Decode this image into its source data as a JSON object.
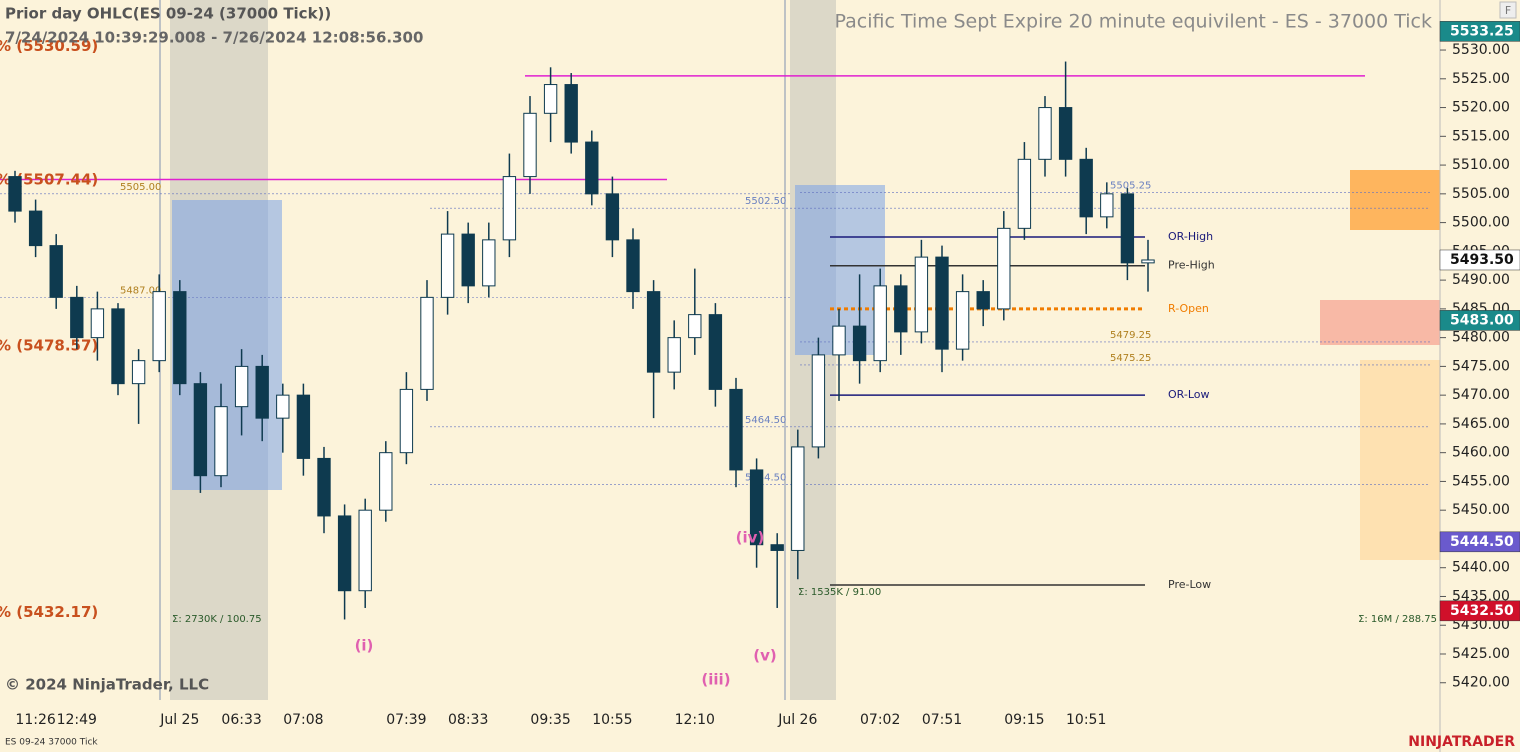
{
  "chart_data": {
    "type": "candlestick",
    "title": "Pacific Time Sept Expire 20 minute equivilent - ES - 37000 Tick",
    "subtitle": "Prior day OHLC(ES 09-24 (37000 Tick))",
    "range_text": "7/24/2024 10:39:29.008 - 7/26/2024 12:08:56.300",
    "copyright": "© 2024 NinjaTrader, LLC",
    "instrument": "ES 09-24 37000 Tick",
    "brand": "NINJATRADER",
    "corner_button": "F",
    "categories": [
      null,
      "11:26",
      null,
      "12:49",
      null,
      null,
      null,
      null,
      "Jul 25",
      null,
      null,
      "06:33",
      null,
      null,
      "07:08",
      null,
      null,
      null,
      null,
      "07:39",
      null,
      null,
      "08:33",
      null,
      null,
      null,
      "09:35",
      null,
      null,
      "10:55",
      null,
      null,
      null,
      "12:10",
      null,
      null,
      null,
      null,
      "Jul 26",
      null,
      null,
      null,
      "07:02",
      null,
      null,
      "07:51",
      null,
      null,
      null,
      "09:15",
      null,
      null,
      "10:51",
      null,
      null,
      null
    ],
    "open": [
      5508,
      5502,
      5496,
      5487,
      5480,
      5485,
      5472,
      5476,
      5488,
      5472,
      5456,
      5468,
      5475,
      5466,
      5470,
      5459,
      5449,
      5436,
      5450,
      5460,
      5471,
      5487,
      5498,
      5489,
      5497,
      5508,
      5519,
      5524,
      5514,
      5505,
      5497,
      5488,
      5474,
      5480,
      5484,
      5471,
      5457,
      5444,
      5443,
      5461,
      5477,
      5482,
      5476,
      5489,
      5481,
      5494,
      5478,
      5488,
      5485,
      5499,
      5511,
      5520,
      5511,
      5501,
      5505,
      5493
    ],
    "high": [
      5509,
      5504,
      5498,
      5489,
      5488,
      5486,
      5478,
      5491,
      5490,
      5474,
      5472,
      5478,
      5477,
      5472,
      5472,
      5461,
      5451,
      5452,
      5462,
      5474,
      5490,
      5502,
      5500,
      5500,
      5512,
      5522,
      5527,
      5526,
      5516,
      5508,
      5499,
      5490,
      5483,
      5492,
      5486,
      5473,
      5459,
      5446,
      5464,
      5480,
      5485,
      5491,
      5492,
      5491,
      5497,
      5496,
      5491,
      5490,
      5502,
      5514,
      5522,
      5528,
      5513,
      5507,
      5506,
      5497
    ],
    "low": [
      5500,
      5494,
      5485,
      5478,
      5476,
      5470,
      5465,
      5474,
      5470,
      5453,
      5454,
      5463,
      5462,
      5460,
      5456,
      5446,
      5431,
      5433,
      5448,
      5458,
      5469,
      5484,
      5486,
      5487,
      5494,
      5505,
      5514,
      5512,
      5503,
      5494,
      5485,
      5466,
      5471,
      5477,
      5468,
      5454,
      5440,
      5433,
      5438,
      5459,
      5469,
      5472,
      5474,
      5477,
      5479,
      5474,
      5476,
      5482,
      5483,
      5497,
      5508,
      5508,
      5498,
      5499,
      5490,
      5488
    ],
    "close": [
      5502,
      5496,
      5487,
      5480,
      5485,
      5472,
      5476,
      5488,
      5472,
      5456,
      5468,
      5475,
      5466,
      5470,
      5459,
      5449,
      5436,
      5450,
      5460,
      5471,
      5487,
      5498,
      5489,
      5497,
      5508,
      5519,
      5524,
      5514,
      5505,
      5497,
      5488,
      5474,
      5480,
      5484,
      5471,
      5457,
      5444,
      5443,
      5461,
      5477,
      5482,
      5476,
      5489,
      5481,
      5494,
      5478,
      5488,
      5485,
      5499,
      5511,
      5520,
      5511,
      5501,
      5505,
      5493,
      5493.5
    ],
    "up_color": "#ffffff",
    "down_color": "#0e3a4f",
    "ylim": [
      5417,
      5538.7
    ],
    "yticks": [
      {
        "value": 5420,
        "label": "5420.00"
      },
      {
        "value": 5425,
        "label": "5425.00"
      },
      {
        "value": 5430,
        "label": "5430.00"
      },
      {
        "value": 5435,
        "label": "5435.00"
      },
      {
        "value": 5440,
        "label": "5440.00"
      },
      {
        "value": 5445,
        "label": "5445.00"
      },
      {
        "value": 5450,
        "label": "5450.00"
      },
      {
        "value": 5455,
        "label": "5455.00"
      },
      {
        "value": 5460,
        "label": "5460.00"
      },
      {
        "value": 5465,
        "label": "5465.00"
      },
      {
        "value": 5470,
        "label": "5470.00"
      },
      {
        "value": 5475,
        "label": "5475.00"
      },
      {
        "value": 5480,
        "label": "5480.00"
      },
      {
        "value": 5485,
        "label": "5485.00"
      },
      {
        "value": 5490,
        "label": "5490.00"
      },
      {
        "value": 5495,
        "label": "5495.00"
      },
      {
        "value": 5500,
        "label": "5500.00"
      },
      {
        "value": 5505,
        "label": "5505.00"
      },
      {
        "value": 5510,
        "label": "5510.00"
      },
      {
        "value": 5515,
        "label": "5515.00"
      },
      {
        "value": 5520,
        "label": "5520.00"
      },
      {
        "value": 5525,
        "label": "5525.00"
      },
      {
        "value": 5530,
        "label": "5530.00"
      }
    ],
    "levels": [
      {
        "value": 5497.5,
        "label": "OR-High",
        "color": "#1a1a7a"
      },
      {
        "value": 5492.5,
        "label": "Pre-High",
        "color": "#333333"
      },
      {
        "value": 5485,
        "label": "R-Open",
        "color": "#f07c00"
      },
      {
        "value": 5470,
        "label": "OR-Low",
        "color": "#1a1a7a"
      },
      {
        "value": 5437,
        "label": "Pre-Low",
        "color": "#333333"
      },
      {
        "value": 5525.5,
        "color": "#e020d0"
      },
      {
        "value": 5507.5,
        "color": "#e020d0"
      }
    ],
    "price_labels": [
      {
        "value": 5505,
        "label": "5505.00"
      },
      {
        "value": 5487,
        "label": "5487.00"
      },
      {
        "value": 5502.5,
        "label": "5502.50"
      },
      {
        "value": 5464.5,
        "label": "5464.50"
      },
      {
        "value": 5454.5,
        "label": "5454.50"
      },
      {
        "value": 5505.25,
        "label": "5505.25"
      },
      {
        "value": 5479.25,
        "label": "5479.25"
      },
      {
        "value": 5475.25,
        "label": "5475.25"
      }
    ],
    "left_labels": [
      {
        "value": 5530.59,
        "label": "% (5530.59)"
      },
      {
        "value": 5507.44,
        "label": "% (5507.44)"
      },
      {
        "value": 5478.57,
        "label": "% (5478.57)"
      },
      {
        "value": 5432.17,
        "label": "% (5432.17)"
      }
    ],
    "price_markers": [
      {
        "value": 5533.25,
        "label": "5533.25",
        "color": "#1a8a8a"
      },
      {
        "value": 5493.5,
        "label": "5493.50",
        "color": "#ffffff"
      },
      {
        "value": 5483,
        "label": "5483.00",
        "color": "#1a8a8a"
      },
      {
        "value": 5444.5,
        "label": "5444.50",
        "color": "#6a5acd"
      },
      {
        "value": 5432.5,
        "label": "5432.50",
        "color": "#d0102a"
      }
    ],
    "wave_labels": [
      "(i)",
      "(iii)",
      "(iv)",
      "(v)"
    ],
    "volume_notes": [
      "Σ: 2730K / 100.75",
      "Σ: 1535K / 91.00",
      "Σ: 16M / 288.75"
    ]
  }
}
